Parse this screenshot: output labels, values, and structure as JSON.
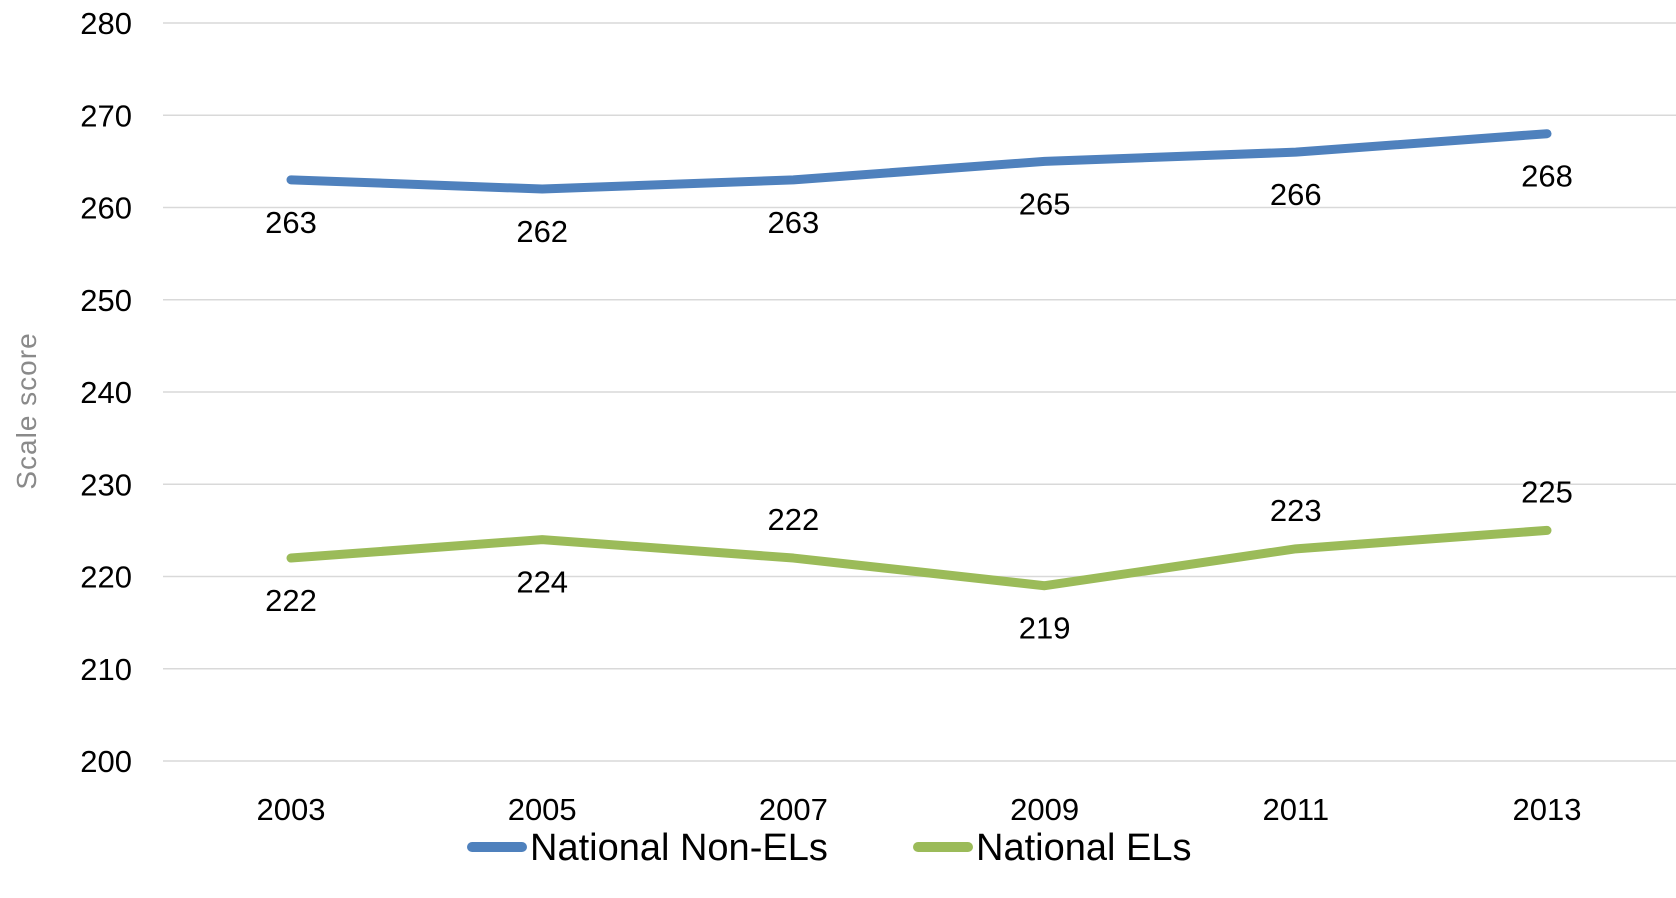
{
  "chart_data": {
    "type": "line",
    "title": "",
    "xlabel": "",
    "ylabel": "Scale score",
    "categories": [
      "2003",
      "2005",
      "2007",
      "2009",
      "2011",
      "2013"
    ],
    "ylim": [
      200,
      280
    ],
    "yticks": [
      200,
      210,
      220,
      230,
      240,
      250,
      260,
      270,
      280
    ],
    "grid": true,
    "legend_position": "bottom",
    "series": [
      {
        "name": "National Non-ELs",
        "color": "#4f81bd",
        "values": [
          263,
          262,
          263,
          265,
          266,
          268
        ],
        "label_positions": [
          "below",
          "below",
          "below",
          "below",
          "below",
          "below"
        ]
      },
      {
        "name": "National ELs",
        "color": "#9bbb59",
        "values": [
          222,
          224,
          222,
          219,
          223,
          225
        ],
        "label_positions": [
          "below",
          "below",
          "above",
          "below",
          "above",
          "above"
        ]
      }
    ]
  }
}
